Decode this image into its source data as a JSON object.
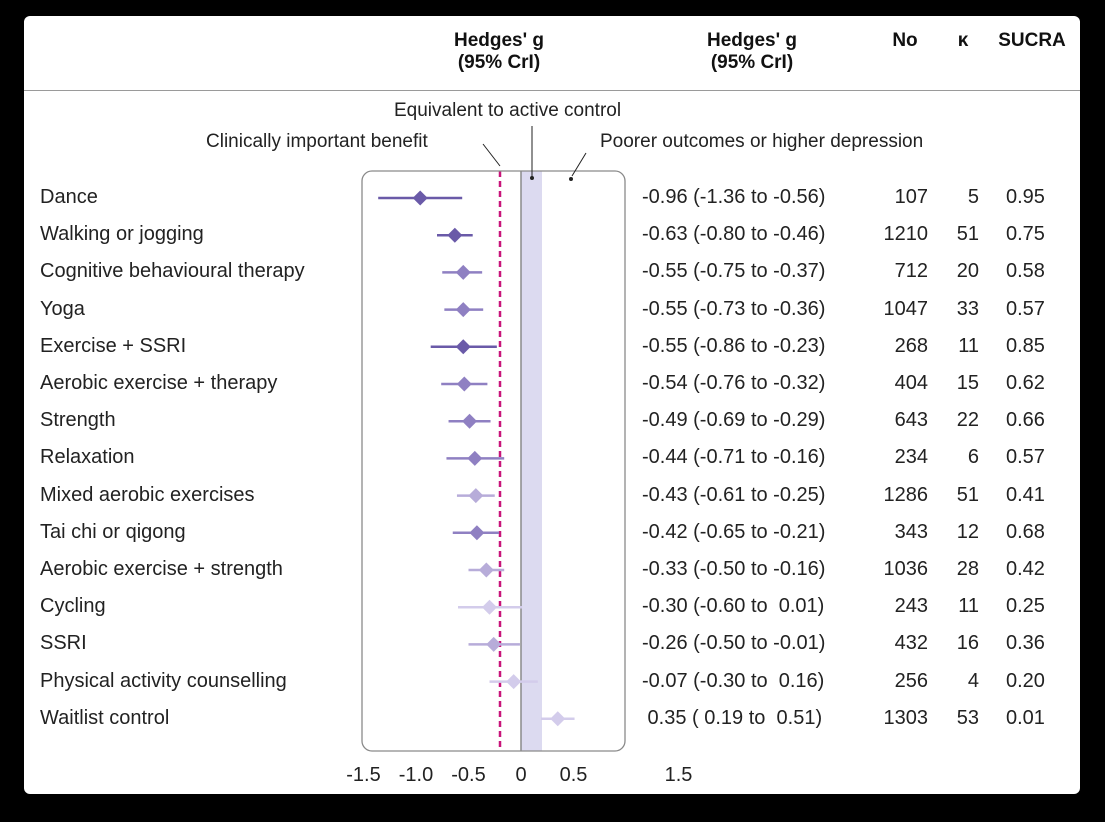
{
  "headers": {
    "plot": "Hedges' g\n(95% CrI)",
    "estimate": "Hedges' g\n(95% CrI)",
    "no": "No",
    "k": "κ",
    "sucra": "SUCRA"
  },
  "annotations": {
    "equivalent": "Equivalent to active control",
    "benefit": "Clinically important benefit",
    "poorer": "Poorer outcomes or higher depression"
  },
  "colors": {
    "dark": "#6a5aa8",
    "medium": "#8f80c2",
    "light": "#b7acd9",
    "lightest": "#d3cceb",
    "band": "#dcdaf0",
    "mcid_line": "#c8147a"
  },
  "chart_data": {
    "type": "forest",
    "xlim": [
      -1.5,
      1.5
    ],
    "x_ticks": [
      "-1.5",
      "-1.0",
      "-0.5",
      "0",
      "0.5",
      "1.5"
    ],
    "x_tick_values": [
      -1.5,
      -1.0,
      -0.5,
      0,
      0.5,
      1.5
    ],
    "reference_lines": {
      "clinically_important": -0.2,
      "null": 0
    },
    "equivalence_band": [
      0,
      0.2
    ],
    "rows": [
      {
        "label": "Dance",
        "g": -0.96,
        "lo": -1.36,
        "hi": -0.56,
        "estimate_text": "-0.96 (-1.36 to -0.56)",
        "no": "107",
        "k": "5",
        "sucra": "0.95",
        "shade": "dark"
      },
      {
        "label": "Walking or jogging",
        "g": -0.63,
        "lo": -0.8,
        "hi": -0.46,
        "estimate_text": "-0.63 (-0.80 to -0.46)",
        "no": "1210",
        "k": "51",
        "sucra": "0.75",
        "shade": "dark"
      },
      {
        "label": "Cognitive behavioural therapy",
        "g": -0.55,
        "lo": -0.75,
        "hi": -0.37,
        "estimate_text": "-0.55 (-0.75 to -0.37)",
        "no": "712",
        "k": "20",
        "sucra": "0.58",
        "shade": "medium"
      },
      {
        "label": "Yoga",
        "g": -0.55,
        "lo": -0.73,
        "hi": -0.36,
        "estimate_text": "-0.55 (-0.73 to -0.36)",
        "no": "1047",
        "k": "33",
        "sucra": "0.57",
        "shade": "medium"
      },
      {
        "label": "Exercise + SSRI",
        "g": -0.55,
        "lo": -0.86,
        "hi": -0.23,
        "estimate_text": "-0.55 (-0.86 to -0.23)",
        "no": "268",
        "k": "11",
        "sucra": "0.85",
        "shade": "dark"
      },
      {
        "label": "Aerobic exercise + therapy",
        "g": -0.54,
        "lo": -0.76,
        "hi": -0.32,
        "estimate_text": "-0.54 (-0.76 to -0.32)",
        "no": "404",
        "k": "15",
        "sucra": "0.62",
        "shade": "medium"
      },
      {
        "label": "Strength",
        "g": -0.49,
        "lo": -0.69,
        "hi": -0.29,
        "estimate_text": "-0.49 (-0.69 to -0.29)",
        "no": "643",
        "k": "22",
        "sucra": "0.66",
        "shade": "medium"
      },
      {
        "label": "Relaxation",
        "g": -0.44,
        "lo": -0.71,
        "hi": -0.16,
        "estimate_text": "-0.44 (-0.71 to -0.16)",
        "no": "234",
        "k": "6",
        "sucra": "0.57",
        "shade": "medium"
      },
      {
        "label": "Mixed aerobic exercises",
        "g": -0.43,
        "lo": -0.61,
        "hi": -0.25,
        "estimate_text": "-0.43 (-0.61 to -0.25)",
        "no": "1286",
        "k": "51",
        "sucra": "0.41",
        "shade": "light"
      },
      {
        "label": "Tai chi or qigong",
        "g": -0.42,
        "lo": -0.65,
        "hi": -0.21,
        "estimate_text": "-0.42 (-0.65 to -0.21)",
        "no": "343",
        "k": "12",
        "sucra": "0.68",
        "shade": "medium"
      },
      {
        "label": "Aerobic exercise + strength",
        "g": -0.33,
        "lo": -0.5,
        "hi": -0.16,
        "estimate_text": "-0.33 (-0.50 to -0.16)",
        "no": "1036",
        "k": "28",
        "sucra": "0.42",
        "shade": "light"
      },
      {
        "label": "Cycling",
        "g": -0.3,
        "lo": -0.6,
        "hi": 0.01,
        "estimate_text": "-0.30 (-0.60 to  0.01)",
        "no": "243",
        "k": "11",
        "sucra": "0.25",
        "shade": "lightest"
      },
      {
        "label": "SSRI",
        "g": -0.26,
        "lo": -0.5,
        "hi": -0.01,
        "estimate_text": "-0.26 (-0.50 to -0.01)",
        "no": "432",
        "k": "16",
        "sucra": "0.36",
        "shade": "light"
      },
      {
        "label": "Physical activity counselling",
        "g": -0.07,
        "lo": -0.3,
        "hi": 0.16,
        "estimate_text": "-0.07 (-0.30 to  0.16)",
        "no": "256",
        "k": "4",
        "sucra": "0.20",
        "shade": "lightest"
      },
      {
        "label": "Waitlist control",
        "g": 0.35,
        "lo": 0.19,
        "hi": 0.51,
        "estimate_text": " 0.35 ( 0.19 to  0.51)",
        "no": "1303",
        "k": "53",
        "sucra": "0.01",
        "shade": "lightest"
      }
    ]
  }
}
